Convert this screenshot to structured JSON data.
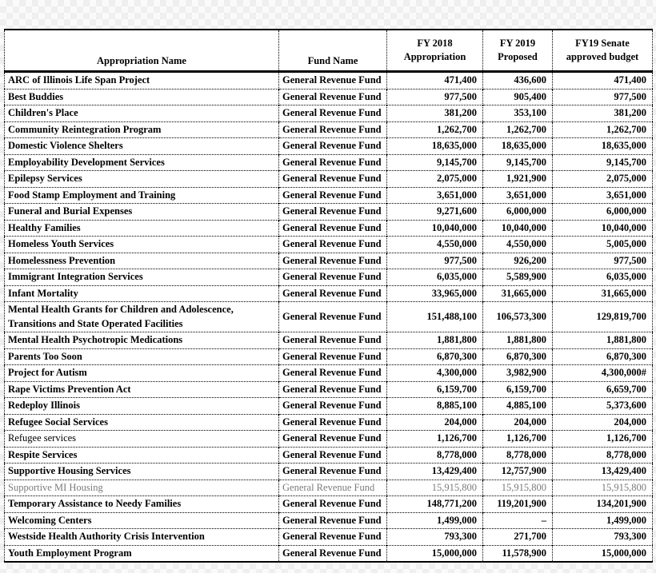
{
  "colors": {
    "muted_text": "#7b7b7b"
  },
  "table": {
    "headers": {
      "name": "Appropriation Name",
      "fund": "Fund Name",
      "fy2018": "FY 2018\nAppropriation",
      "fy2019": "FY 2019\nProposed",
      "senate": "FY19 Senate\napproved budget"
    },
    "rows": [
      {
        "name": "ARC of Illinois Life Span Project",
        "fund": "General Revenue Fund",
        "fy2018": "471,400",
        "fy2019": "436,600",
        "senate": "471,400",
        "style": "bold"
      },
      {
        "name": "Best Buddies",
        "fund": "General Revenue Fund",
        "fy2018": "977,500",
        "fy2019": "905,400",
        "senate": "977,500",
        "style": "bold"
      },
      {
        "name": "Children's Place",
        "fund": "General Revenue Fund",
        "fy2018": "381,200",
        "fy2019": "353,100",
        "senate": "381,200",
        "style": "bold"
      },
      {
        "name": "Community Reintegration Program",
        "fund": "General Revenue Fund",
        "fy2018": "1,262,700",
        "fy2019": "1,262,700",
        "senate": "1,262,700",
        "style": "bold"
      },
      {
        "name": "Domestic Violence Shelters",
        "fund": "General Revenue Fund",
        "fy2018": "18,635,000",
        "fy2019": "18,635,000",
        "senate": "18,635,000",
        "style": "bold"
      },
      {
        "name": "Employability Development Services",
        "fund": "General Revenue Fund",
        "fy2018": "9,145,700",
        "fy2019": "9,145,700",
        "senate": "9,145,700",
        "style": "bold"
      },
      {
        "name": "Epilepsy Services",
        "fund": "General Revenue Fund",
        "fy2018": "2,075,000",
        "fy2019": "1,921,900",
        "senate": "2,075,000",
        "style": "bold"
      },
      {
        "name": "Food Stamp Employment and Training",
        "fund": "General Revenue Fund",
        "fy2018": "3,651,000",
        "fy2019": "3,651,000",
        "senate": "3,651,000",
        "style": "bold"
      },
      {
        "name": "Funeral and Burial Expenses",
        "fund": "General Revenue Fund",
        "fy2018": "9,271,600",
        "fy2019": "6,000,000",
        "senate": "6,000,000",
        "style": "bold"
      },
      {
        "name": "Healthy Families",
        "fund": "General Revenue Fund",
        "fy2018": "10,040,000",
        "fy2019": "10,040,000",
        "senate": "10,040,000",
        "style": "bold"
      },
      {
        "name": "Homeless Youth Services",
        "fund": "General Revenue Fund",
        "fy2018": "4,550,000",
        "fy2019": "4,550,000",
        "senate": "5,005,000",
        "style": "bold"
      },
      {
        "name": "Homelessness Prevention",
        "fund": "General Revenue Fund",
        "fy2018": "977,500",
        "fy2019": "926,200",
        "senate": "977,500",
        "style": "bold"
      },
      {
        "name": "Immigrant Integration Services",
        "fund": "General Revenue Fund",
        "fy2018": "6,035,000",
        "fy2019": "5,589,900",
        "senate": "6,035,000",
        "style": "bold"
      },
      {
        "name": "Infant Mortality",
        "fund": "General Revenue Fund",
        "fy2018": "33,965,000",
        "fy2019": "31,665,000",
        "senate": "31,665,000",
        "style": "bold"
      },
      {
        "name": "Mental Health Grants for Children and Adolescence, Transitions and State Operated Facilities",
        "fund": "General Revenue Fund",
        "fy2018": "151,488,100",
        "fy2019": "106,573,300",
        "senate": "129,819,700",
        "style": "bold"
      },
      {
        "name": "Mental Health Psychotropic Medications",
        "fund": "General Revenue Fund",
        "fy2018": "1,881,800",
        "fy2019": "1,881,800",
        "senate": "1,881,800",
        "style": "bold"
      },
      {
        "name": "Parents Too Soon",
        "fund": "General Revenue Fund",
        "fy2018": "6,870,300",
        "fy2019": "6,870,300",
        "senate": "6,870,300",
        "style": "bold"
      },
      {
        "name": "Project for Autism",
        "fund": "General Revenue Fund",
        "fy2018": "4,300,000",
        "fy2019": "3,982,900",
        "senate": "4,300,000#",
        "style": "bold"
      },
      {
        "name": "Rape Victims Prevention Act",
        "fund": "General Revenue Fund",
        "fy2018": "6,159,700",
        "fy2019": "6,159,700",
        "senate": "6,659,700",
        "style": "bold"
      },
      {
        "name": "Redeploy Illinois",
        "fund": "General Revenue Fund",
        "fy2018": "8,885,100",
        "fy2019": "4,885,100",
        "senate": "5,373,600",
        "style": "bold"
      },
      {
        "name": "Refugee Social Services",
        "fund": "General Revenue Fund",
        "fy2018": "204,000",
        "fy2019": "204,000",
        "senate": "204,000",
        "style": "bold"
      },
      {
        "name": "Refugee services",
        "fund": "General Revenue Fund",
        "fy2018": "1,126,700",
        "fy2019": "1,126,700",
        "senate": "1,126,700",
        "style": "name_regular"
      },
      {
        "name": "Respite Services",
        "fund": "General Revenue Fund",
        "fy2018": "8,778,000",
        "fy2019": "8,778,000",
        "senate": "8,778,000",
        "style": "bold"
      },
      {
        "name": "Supportive Housing Services",
        "fund": "General Revenue Fund",
        "fy2018": "13,429,400",
        "fy2019": "12,757,900",
        "senate": "13,429,400",
        "style": "bold"
      },
      {
        "name": "Supportive MI Housing",
        "fund": "General Revenue Fund",
        "fy2018": "15,915,800",
        "fy2019": "15,915,800",
        "senate": "15,915,800",
        "style": "muted"
      },
      {
        "name": "Temporary Assistance to Needy Families",
        "fund": "General Revenue Fund",
        "fy2018": "148,771,200",
        "fy2019": "119,201,900",
        "senate": "134,201,900",
        "style": "bold"
      },
      {
        "name": "Welcoming Centers",
        "fund": "General Revenue Fund",
        "fy2018": "1,499,000",
        "fy2019": "–",
        "senate": "1,499,000",
        "style": "bold"
      },
      {
        "name": "Westside Health Authority Crisis Intervention",
        "fund": "General Revenue Fund",
        "fy2018": "793,300",
        "fy2019": "271,700",
        "senate": "793,300",
        "style": "bold"
      },
      {
        "name": "Youth Employment Program",
        "fund": "General Revenue Fund",
        "fy2018": "15,000,000",
        "fy2019": "11,578,900",
        "senate": "15,000,000",
        "style": "bold"
      }
    ]
  }
}
